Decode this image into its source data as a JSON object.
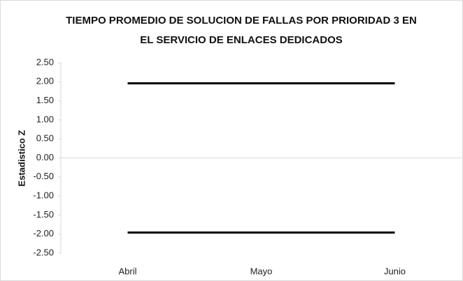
{
  "chart_data": {
    "type": "line",
    "title": [
      "TIEMPO PROMEDIO DE SOLUCION DE FALLAS POR PRIORIDAD 3 EN",
      "EL SERVICIO DE ENLACES DEDICADOS"
    ],
    "y_label": "Estadistico Z",
    "categories": [
      "Abril",
      "Mayo",
      "Junio"
    ],
    "series": [
      {
        "color": "#000000",
        "values": [
          1.96,
          1.96,
          1.96
        ]
      },
      {
        "color": "#000000",
        "values": [
          -1.96,
          -1.96,
          -1.96
        ]
      }
    ],
    "ylim": [
      -2.5,
      2.5
    ],
    "yticks": [
      {
        "value": -2.5,
        "label": "-2.50"
      },
      {
        "value": -2,
        "label": "-2.00"
      },
      {
        "value": -1.5,
        "label": "-1.50"
      },
      {
        "value": -1,
        "label": "-1.00"
      },
      {
        "value": -0.5,
        "label": "-0.50"
      },
      {
        "value": 0,
        "label": "0.00"
      },
      {
        "value": 0.5,
        "label": "0.50"
      },
      {
        "value": 1,
        "label": "1.00"
      },
      {
        "value": 1.5,
        "label": "1.50"
      },
      {
        "value": 2,
        "label": "2.00"
      },
      {
        "value": 2.5,
        "label": "2.50"
      }
    ],
    "grid": false
  }
}
